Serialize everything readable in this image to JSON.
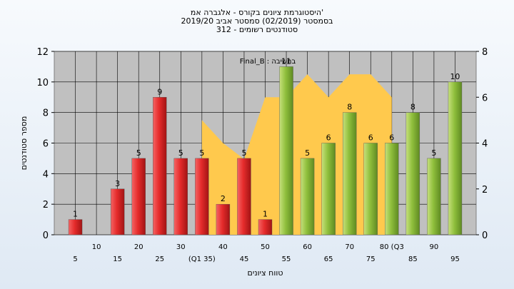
{
  "chart_data": {
    "type": "bar",
    "title": [
      "היסטוגרמת ציונים בקורס - אלגברה אמ'",
      "בסמסטר  (02/2019)  סמסטר אביב 2019/20",
      "סטודנטים רשומים - 312"
    ],
    "xlabel": "טווח ציונים",
    "ylabel": "מספר סטודנטים",
    "x_ticks_lower": [
      "5",
      "15",
      "25",
      "(Q1 35)",
      "45",
      "55",
      "65",
      "75",
      "85",
      "95"
    ],
    "x_ticks_upper": [
      "10",
      "20",
      "30",
      "40",
      "50",
      "60",
      "70",
      "80 (Q3",
      "90"
    ],
    "ylim": [
      0,
      12
    ],
    "y_ticks": [
      0,
      2,
      4,
      6,
      8,
      10,
      12
    ],
    "y2lim": [
      0,
      8
    ],
    "y2_ticks": [
      0,
      2,
      4,
      6,
      8
    ],
    "categories": [
      "5",
      "15",
      "25",
      "35",
      "45",
      "55",
      "65",
      "75",
      "85",
      "95"
    ],
    "bars": [
      {
        "x": 5,
        "value": 1,
        "color": "red"
      },
      {
        "x": 15,
        "value": 3,
        "color": "red"
      },
      {
        "x": 20,
        "value": 5,
        "color": "red"
      },
      {
        "x": 25,
        "value": 9,
        "color": "red"
      },
      {
        "x": 30,
        "value": 5,
        "color": "red"
      },
      {
        "x": 35,
        "value": 5,
        "color": "red"
      },
      {
        "x": 40,
        "value": 2,
        "color": "red"
      },
      {
        "x": 45,
        "value": 5,
        "color": "red"
      },
      {
        "x": 50,
        "value": 1,
        "color": "red"
      },
      {
        "x": 55,
        "value": 11,
        "color": "green"
      },
      {
        "x": 60,
        "value": 5,
        "color": "green"
      },
      {
        "x": 65,
        "value": 6,
        "color": "green"
      },
      {
        "x": 70,
        "value": 8,
        "color": "green"
      },
      {
        "x": 75,
        "value": 6,
        "color": "green"
      },
      {
        "x": 80,
        "value": 6,
        "color": "green"
      },
      {
        "x": 85,
        "value": 8,
        "color": "green"
      },
      {
        "x": 90,
        "value": 5,
        "color": "green"
      },
      {
        "x": 95,
        "value": 10,
        "color": "green"
      }
    ],
    "area_series": {
      "color": "#ffc94d",
      "points": [
        [
          35,
          5
        ],
        [
          40,
          4
        ],
        [
          45,
          3.3
        ],
        [
          50,
          6
        ],
        [
          55,
          6
        ],
        [
          60,
          7
        ],
        [
          65,
          6
        ],
        [
          70,
          7
        ],
        [
          75,
          7
        ],
        [
          80,
          6
        ]
      ]
    },
    "annotation": "Final_B : בחשיבה",
    "grid": true,
    "colors": {
      "red": "#e52b2b",
      "green": "#8fbf3c",
      "plot_bg": "#c0c0c0",
      "area": "#ffc94d"
    }
  }
}
